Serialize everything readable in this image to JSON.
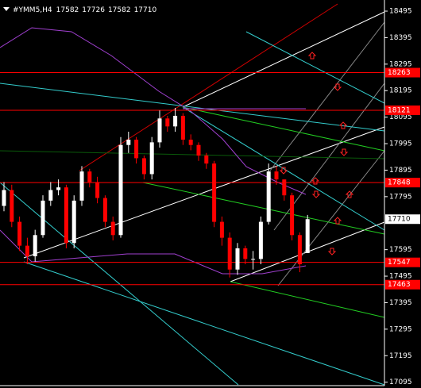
{
  "chart_data": {
    "type": "candlestick",
    "symbol": "#YMM5,H4",
    "open": [
      17760,
      17820,
      17700,
      17610,
      17570,
      17650,
      17780,
      17820,
      17830,
      17620,
      17780,
      17890,
      17850,
      17790,
      17700,
      17650,
      17990,
      18010,
      17940,
      17880,
      18000,
      18090,
      18060,
      18100,
      18010,
      17990,
      17950,
      17920,
      17700,
      17640,
      17520,
      17600,
      17560,
      17560,
      17700,
      17890,
      17860,
      17800,
      17650,
      17582
    ],
    "high": [
      17850,
      17840,
      17720,
      17640,
      17670,
      17800,
      17850,
      17860,
      17840,
      17800,
      17910,
      17900,
      17870,
      17800,
      17720,
      18020,
      18040,
      18020,
      17950,
      18020,
      18120,
      18100,
      18130,
      18110,
      18030,
      18000,
      17960,
      17930,
      17720,
      17660,
      17620,
      17610,
      17590,
      17720,
      17920,
      17910,
      17860,
      17810,
      17660,
      17726
    ],
    "low": [
      17740,
      17680,
      17590,
      17540,
      17550,
      17640,
      17760,
      17800,
      17600,
      17600,
      17760,
      17830,
      17770,
      17680,
      17630,
      17640,
      17960,
      17920,
      17860,
      17860,
      17980,
      18040,
      18040,
      17990,
      17970,
      17930,
      17900,
      17680,
      17610,
      17490,
      17500,
      17540,
      17520,
      17540,
      17690,
      17840,
      17780,
      17630,
      17510,
      17582
    ],
    "close": [
      17820,
      17700,
      17610,
      17570,
      17650,
      17780,
      17820,
      17830,
      17620,
      17780,
      17890,
      17850,
      17790,
      17700,
      17650,
      17990,
      18010,
      17940,
      17880,
      18000,
      18090,
      18060,
      18100,
      18010,
      17990,
      17950,
      17920,
      17700,
      17640,
      17520,
      17600,
      17560,
      17560,
      17700,
      17890,
      17860,
      17800,
      17650,
      17540,
      17710
    ],
    "up_color": "#ffffff",
    "down_color": "#ff0000",
    "levels": [
      18263,
      18121,
      17848,
      17547,
      17463
    ],
    "level_color": "#ff0000",
    "ylim": [
      17085,
      18537
    ],
    "yticks": [
      18495,
      18395,
      18295,
      18195,
      18095,
      17995,
      17895,
      17795,
      17595,
      17495,
      17395,
      17295,
      17195,
      17095
    ]
  }
}
